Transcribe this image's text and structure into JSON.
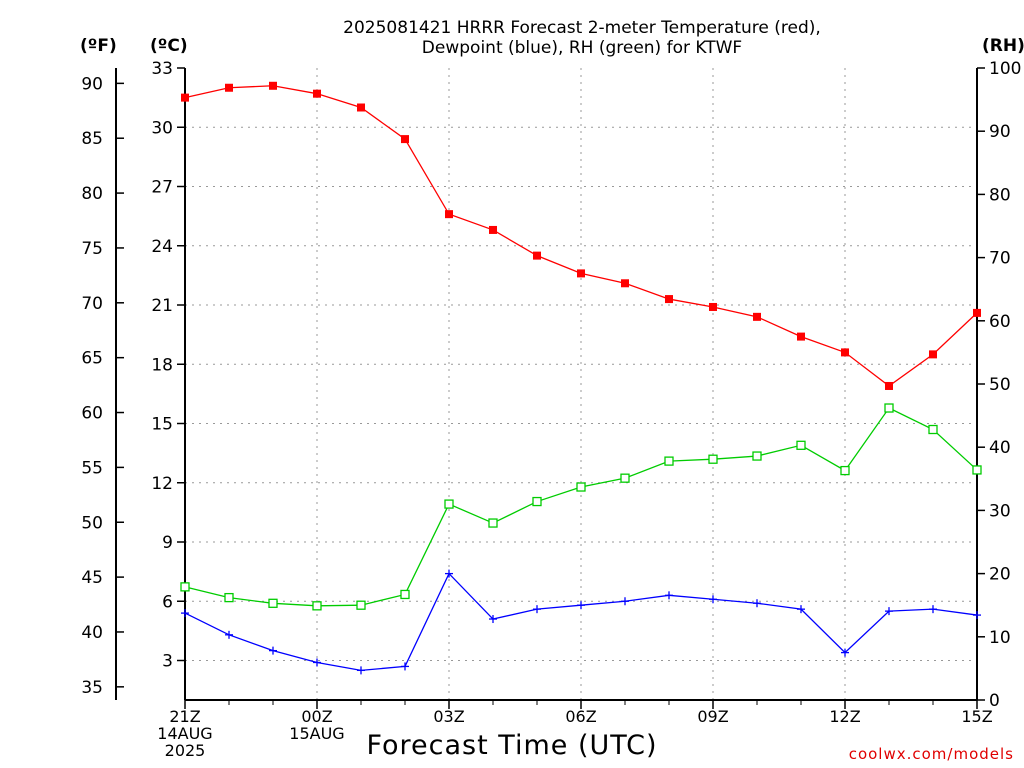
{
  "chart_data": {
    "type": "line",
    "title_line1": "2025081421 HRRR Forecast 2-meter Temperature (red),",
    "title_line2": "Dewpoint (blue), RH (green) for KTWF",
    "xlabel": "Forecast Time (UTC)",
    "credit": "coolwx.com/models",
    "units": {
      "fahrenheit": "(ºF)",
      "celsius": "(ºC)",
      "rh": "(RH)"
    },
    "x": [
      0,
      1,
      2,
      3,
      4,
      5,
      6,
      7,
      8,
      9,
      10,
      11,
      12,
      13,
      14,
      15,
      16,
      17,
      18
    ],
    "x_ticks": [
      {
        "x": 0,
        "lines": [
          "21Z",
          "14AUG",
          "2025"
        ]
      },
      {
        "x": 3,
        "lines": [
          "00Z",
          "15AUG"
        ]
      },
      {
        "x": 6,
        "lines": [
          "03Z"
        ]
      },
      {
        "x": 9,
        "lines": [
          "06Z"
        ]
      },
      {
        "x": 12,
        "lines": [
          "09Z"
        ]
      },
      {
        "x": 15,
        "lines": [
          "12Z"
        ]
      },
      {
        "x": 18,
        "lines": [
          "15Z"
        ]
      }
    ],
    "xlim": [
      0,
      18
    ],
    "y_celsius": {
      "ylim": [
        1,
        33
      ],
      "ticks": [
        3,
        6,
        9,
        12,
        15,
        18,
        21,
        24,
        27,
        30,
        33
      ]
    },
    "y_fahrenheit": {
      "ticks": [
        35,
        40,
        45,
        50,
        55,
        60,
        65,
        70,
        75,
        80,
        85,
        90
      ]
    },
    "y_rh": {
      "ylim": [
        0,
        100
      ],
      "ticks": [
        0,
        10,
        20,
        30,
        40,
        50,
        60,
        70,
        80,
        90,
        100
      ]
    },
    "grid": true,
    "series": [
      {
        "name": "Temperature",
        "color": "#ff0000",
        "marker": "filled-square",
        "axis": "celsius",
        "values": [
          31.5,
          32.0,
          32.1,
          31.7,
          31.0,
          29.4,
          25.6,
          24.8,
          23.5,
          22.6,
          22.1,
          21.3,
          20.9,
          20.4,
          19.4,
          18.6,
          16.9,
          18.5,
          20.6
        ]
      },
      {
        "name": "Dewpoint",
        "color": "#0000ff",
        "marker": "plus",
        "axis": "celsius",
        "values": [
          5.4,
          4.3,
          3.5,
          2.9,
          2.5,
          2.7,
          7.4,
          5.1,
          5.6,
          5.8,
          6.0,
          6.3,
          6.1,
          5.9,
          5.6,
          3.4,
          5.5,
          5.6,
          5.3
        ]
      },
      {
        "name": "RH",
        "color": "#00cc00",
        "marker": "open-square",
        "axis": "rh",
        "values": [
          17.9,
          16.2,
          15.3,
          14.9,
          15.0,
          16.7,
          31.0,
          28.0,
          31.4,
          33.7,
          35.1,
          37.8,
          38.1,
          38.6,
          40.3,
          36.3,
          46.2,
          42.8,
          36.4
        ]
      }
    ]
  }
}
